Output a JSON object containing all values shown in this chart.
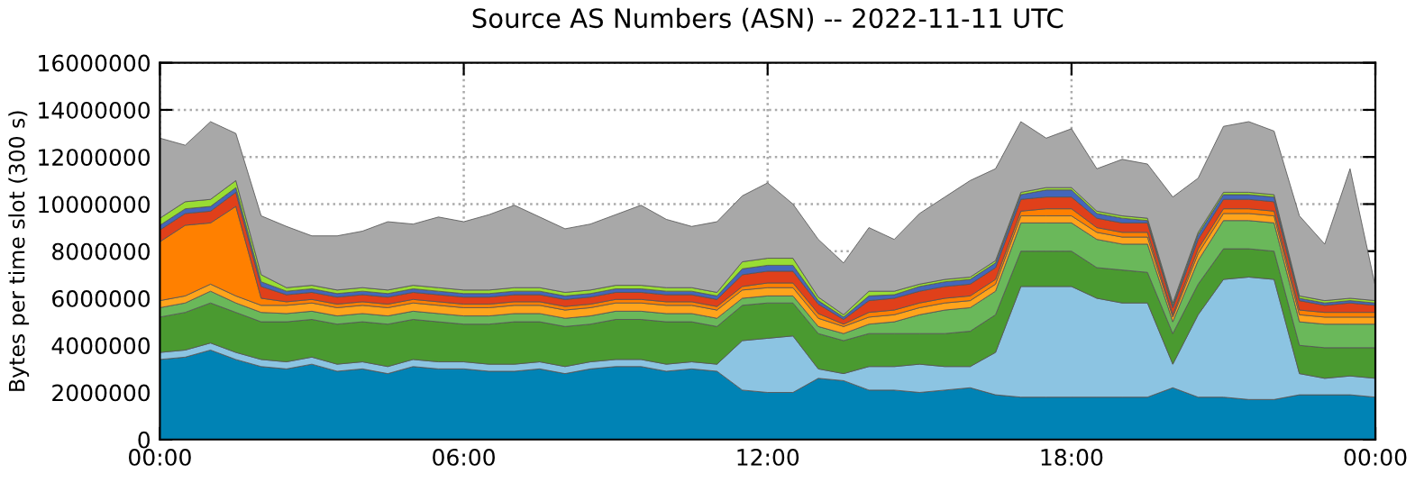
{
  "chart_data": {
    "type": "area",
    "stacked": true,
    "title": "Source AS Numbers (ASN) -- 2022-11-11 UTC",
    "ylabel": "Bytes per time slot (300 s)",
    "x": [
      0,
      0.5,
      1,
      1.5,
      2,
      2.5,
      3,
      3.5,
      4,
      4.5,
      5,
      5.5,
      6,
      6.5,
      7,
      7.5,
      8,
      8.5,
      9,
      9.5,
      10,
      10.5,
      11,
      11.5,
      12,
      12.5,
      13,
      13.5,
      14,
      14.5,
      15,
      15.5,
      16,
      16.5,
      17,
      17.5,
      18,
      18.5,
      19,
      19.5,
      20,
      20.5,
      21,
      21.5,
      22,
      22.5,
      23,
      23.5,
      24
    ],
    "xlim": [
      0,
      24
    ],
    "xticks": [
      {
        "value": 0,
        "label": "00:00"
      },
      {
        "value": 6,
        "label": "06:00"
      },
      {
        "value": 12,
        "label": "12:00"
      },
      {
        "value": 18,
        "label": "18:00"
      },
      {
        "value": 24,
        "label": "00:00"
      }
    ],
    "ylim": [
      0,
      16000000
    ],
    "yticks": [
      0,
      2000000,
      4000000,
      6000000,
      8000000,
      10000000,
      12000000,
      14000000,
      16000000
    ],
    "grid": true,
    "series": [
      {
        "color": "#0083b5",
        "values": [
          3400000,
          3500000,
          3800000,
          3400000,
          3100000,
          3000000,
          3200000,
          2900000,
          3000000,
          2800000,
          3100000,
          3000000,
          3000000,
          2900000,
          2900000,
          3000000,
          2800000,
          3000000,
          3100000,
          3100000,
          2900000,
          3000000,
          2900000,
          2100000,
          2000000,
          2000000,
          2600000,
          2500000,
          2100000,
          2100000,
          2000000,
          2100000,
          2200000,
          1900000,
          1800000,
          1800000,
          1800000,
          1800000,
          1800000,
          1800000,
          2200000,
          1800000,
          1800000,
          1700000,
          1700000,
          1900000,
          1900000,
          1900000,
          1800000
        ]
      },
      {
        "color": "#8cc4e2",
        "values": [
          300000,
          300000,
          300000,
          300000,
          300000,
          300000,
          300000,
          300000,
          300000,
          300000,
          300000,
          300000,
          300000,
          300000,
          300000,
          300000,
          300000,
          300000,
          300000,
          300000,
          300000,
          300000,
          300000,
          2100000,
          2300000,
          2400000,
          400000,
          300000,
          1000000,
          1000000,
          1200000,
          1000000,
          900000,
          1800000,
          4700000,
          4700000,
          4700000,
          4200000,
          4000000,
          4000000,
          1000000,
          3500000,
          5000000,
          5200000,
          5100000,
          900000,
          700000,
          800000,
          800000
        ]
      },
      {
        "color": "#4a9a30",
        "values": [
          1500000,
          1600000,
          1700000,
          1700000,
          1600000,
          1700000,
          1600000,
          1700000,
          1700000,
          1800000,
          1700000,
          1700000,
          1600000,
          1700000,
          1800000,
          1700000,
          1700000,
          1600000,
          1700000,
          1700000,
          1800000,
          1700000,
          1600000,
          1500000,
          1500000,
          1400000,
          1500000,
          1400000,
          1400000,
          1400000,
          1300000,
          1400000,
          1500000,
          1600000,
          1500000,
          1500000,
          1500000,
          1300000,
          1400000,
          1300000,
          1300000,
          1300000,
          1300000,
          1200000,
          1200000,
          1200000,
          1300000,
          1200000,
          1300000
        ]
      },
      {
        "color": "#6ab85a",
        "values": [
          400000,
          400000,
          500000,
          400000,
          400000,
          350000,
          350000,
          350000,
          350000,
          350000,
          350000,
          350000,
          350000,
          350000,
          350000,
          350000,
          350000,
          350000,
          350000,
          350000,
          350000,
          350000,
          350000,
          300000,
          300000,
          300000,
          300000,
          300000,
          400000,
          500000,
          800000,
          1000000,
          1000000,
          1000000,
          1200000,
          1200000,
          1200000,
          1200000,
          1100000,
          1200000,
          500000,
          1000000,
          1200000,
          1200000,
          1200000,
          1000000,
          1000000,
          1000000,
          1000000
        ]
      },
      {
        "color": "#ffa41c",
        "values": [
          300000,
          300000,
          300000,
          300000,
          300000,
          350000,
          350000,
          350000,
          350000,
          350000,
          350000,
          350000,
          350000,
          350000,
          350000,
          350000,
          350000,
          350000,
          350000,
          350000,
          350000,
          350000,
          350000,
          350000,
          350000,
          350000,
          350000,
          300000,
          300000,
          300000,
          300000,
          300000,
          300000,
          300000,
          300000,
          300000,
          300000,
          300000,
          300000,
          300000,
          200000,
          300000,
          300000,
          300000,
          300000,
          300000,
          300000,
          300000,
          300000
        ]
      },
      {
        "color": "#ff8000",
        "values": [
          2500000,
          3000000,
          2600000,
          3800000,
          300000,
          150000,
          150000,
          150000,
          150000,
          150000,
          150000,
          150000,
          150000,
          150000,
          150000,
          150000,
          150000,
          150000,
          150000,
          150000,
          150000,
          150000,
          150000,
          150000,
          200000,
          200000,
          200000,
          100000,
          200000,
          200000,
          200000,
          200000,
          200000,
          200000,
          200000,
          300000,
          300000,
          200000,
          200000,
          200000,
          100000,
          200000,
          200000,
          200000,
          200000,
          200000,
          200000,
          200000,
          200000
        ]
      },
      {
        "color": "#e0401a",
        "values": [
          500000,
          500000,
          500000,
          600000,
          500000,
          300000,
          300000,
          300000,
          300000,
          300000,
          300000,
          300000,
          300000,
          300000,
          300000,
          300000,
          300000,
          300000,
          300000,
          300000,
          300000,
          300000,
          300000,
          500000,
          500000,
          500000,
          400000,
          200000,
          500000,
          500000,
          500000,
          500000,
          500000,
          500000,
          500000,
          500000,
          500000,
          400000,
          400000,
          400000,
          300000,
          400000,
          400000,
          400000,
          400000,
          400000,
          300000,
          400000,
          300000
        ]
      },
      {
        "color": "#4466bb",
        "values": [
          200000,
          200000,
          200000,
          200000,
          200000,
          150000,
          150000,
          150000,
          150000,
          150000,
          150000,
          150000,
          150000,
          150000,
          150000,
          150000,
          150000,
          150000,
          150000,
          150000,
          150000,
          150000,
          150000,
          250000,
          250000,
          250000,
          150000,
          100000,
          200000,
          150000,
          200000,
          200000,
          200000,
          200000,
          200000,
          300000,
          300000,
          200000,
          200000,
          100000,
          100000,
          200000,
          200000,
          200000,
          200000,
          100000,
          100000,
          100000,
          100000
        ]
      },
      {
        "color": "#99dd33",
        "values": [
          300000,
          300000,
          300000,
          300000,
          300000,
          150000,
          150000,
          150000,
          150000,
          150000,
          150000,
          150000,
          150000,
          150000,
          150000,
          150000,
          150000,
          150000,
          150000,
          150000,
          150000,
          150000,
          150000,
          300000,
          300000,
          300000,
          150000,
          100000,
          200000,
          150000,
          100000,
          100000,
          100000,
          100000,
          100000,
          100000,
          100000,
          100000,
          100000,
          100000,
          100000,
          100000,
          100000,
          100000,
          100000,
          100000,
          100000,
          100000,
          100000
        ]
      },
      {
        "color": "#a8a8a8",
        "values": [
          3400000,
          2400000,
          3300000,
          2000000,
          2500000,
          2600000,
          2100000,
          2300000,
          2400000,
          2900000,
          2600000,
          3000000,
          2900000,
          3200000,
          3500000,
          3000000,
          2700000,
          2800000,
          3000000,
          3400000,
          2900000,
          2600000,
          3000000,
          2800000,
          3200000,
          2300000,
          2450000,
          2200000,
          2700000,
          2200000,
          3000000,
          3500000,
          4100000,
          3900000,
          3000000,
          2100000,
          2500000,
          1800000,
          2400000,
          2300000,
          4500000,
          2300000,
          2800000,
          3000000,
          2700000,
          3400000,
          2400000,
          5500000,
          600000
        ]
      }
    ]
  }
}
